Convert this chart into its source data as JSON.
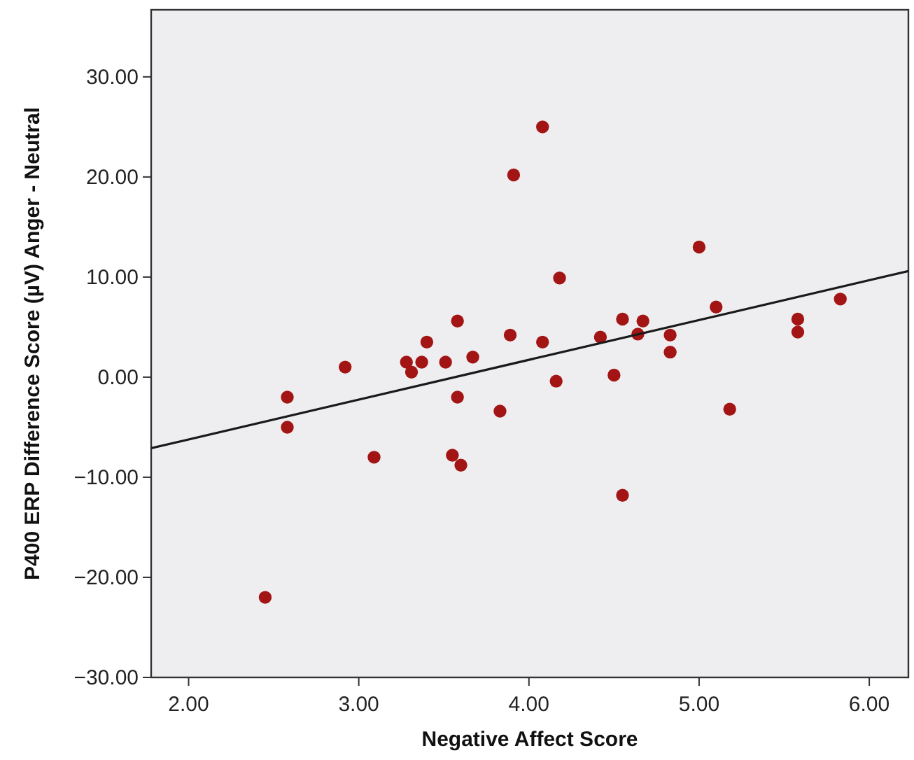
{
  "chart_data": {
    "type": "scatter",
    "xlabel": "Negative Affect Score",
    "ylabel": "P400 ERP Difference Score (µV) Anger - Neutral",
    "xlim": [
      1.78,
      6.23
    ],
    "ylim": [
      -30,
      36.7
    ],
    "xticks": [
      {
        "value": 2,
        "label": "2.00"
      },
      {
        "value": 3,
        "label": "3.00"
      },
      {
        "value": 4,
        "label": "4.00"
      },
      {
        "value": 5,
        "label": "5.00"
      },
      {
        "value": 6,
        "label": "6.00"
      }
    ],
    "yticks": [
      {
        "value": -30,
        "label": "−30.00"
      },
      {
        "value": -20,
        "label": "−20.00"
      },
      {
        "value": -10,
        "label": "−10.00"
      },
      {
        "value": 0,
        "label": "0.00"
      },
      {
        "value": 10,
        "label": "10.00"
      },
      {
        "value": 20,
        "label": "20.00"
      },
      {
        "value": 30,
        "label": "30.00"
      }
    ],
    "grid": false,
    "series": [
      {
        "color": "#a31414",
        "marker": "circle",
        "x": [
          2.45,
          2.58,
          2.58,
          2.92,
          3.09,
          3.28,
          3.31,
          3.37,
          3.4,
          3.51,
          3.55,
          3.58,
          3.58,
          3.6,
          3.67,
          3.83,
          3.89,
          3.91,
          4.08,
          4.08,
          4.16,
          4.18,
          4.42,
          4.5,
          4.55,
          4.55,
          4.64,
          4.67,
          4.83,
          4.83,
          5.0,
          5.1,
          5.18,
          5.58,
          5.58,
          5.83
        ],
        "values": [
          -22,
          -2,
          -5,
          1,
          -8,
          1.5,
          0.5,
          1.5,
          3.5,
          1.5,
          -7.8,
          5.6,
          -2,
          -8.8,
          2,
          -3.4,
          4.2,
          20.2,
          25,
          3.5,
          -0.4,
          9.9,
          4,
          0.2,
          5.8,
          -11.8,
          4.3,
          5.6,
          4.2,
          2.5,
          13,
          7,
          -3.2,
          5.8,
          4.5,
          7.8
        ]
      },
      {
        "type": "line",
        "color": "#1a1a1a",
        "line_style": "solid",
        "marker": "none",
        "x": [
          1.78,
          6.23
        ],
        "values": [
          -7.1,
          10.6
        ]
      }
    ]
  }
}
